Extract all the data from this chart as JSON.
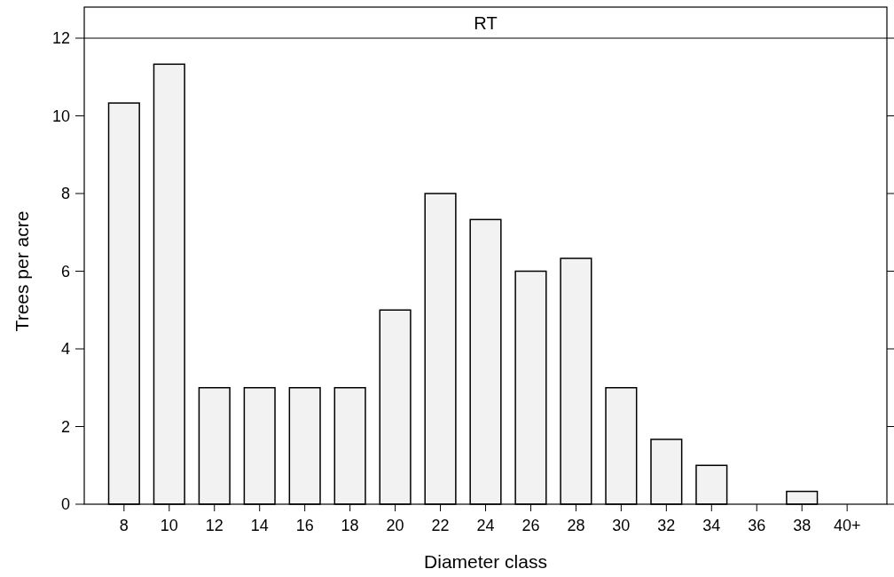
{
  "chart_data": {
    "type": "bar",
    "title": "RT",
    "xlabel": "Diameter class",
    "ylabel": "Trees per acre",
    "categories": [
      "8",
      "10",
      "12",
      "14",
      "16",
      "18",
      "20",
      "22",
      "24",
      "26",
      "28",
      "30",
      "32",
      "34",
      "36",
      "38",
      "40+"
    ],
    "values": [
      10.33,
      11.33,
      3,
      3,
      3,
      3,
      5,
      8,
      7.33,
      6,
      6.33,
      3,
      1.67,
      1,
      0,
      0.33,
      0
    ],
    "color": "#f2f2f2",
    "ylim": [
      0,
      12
    ],
    "yticks": [
      0,
      2,
      4,
      6,
      8,
      10,
      12
    ],
    "grid": false
  }
}
